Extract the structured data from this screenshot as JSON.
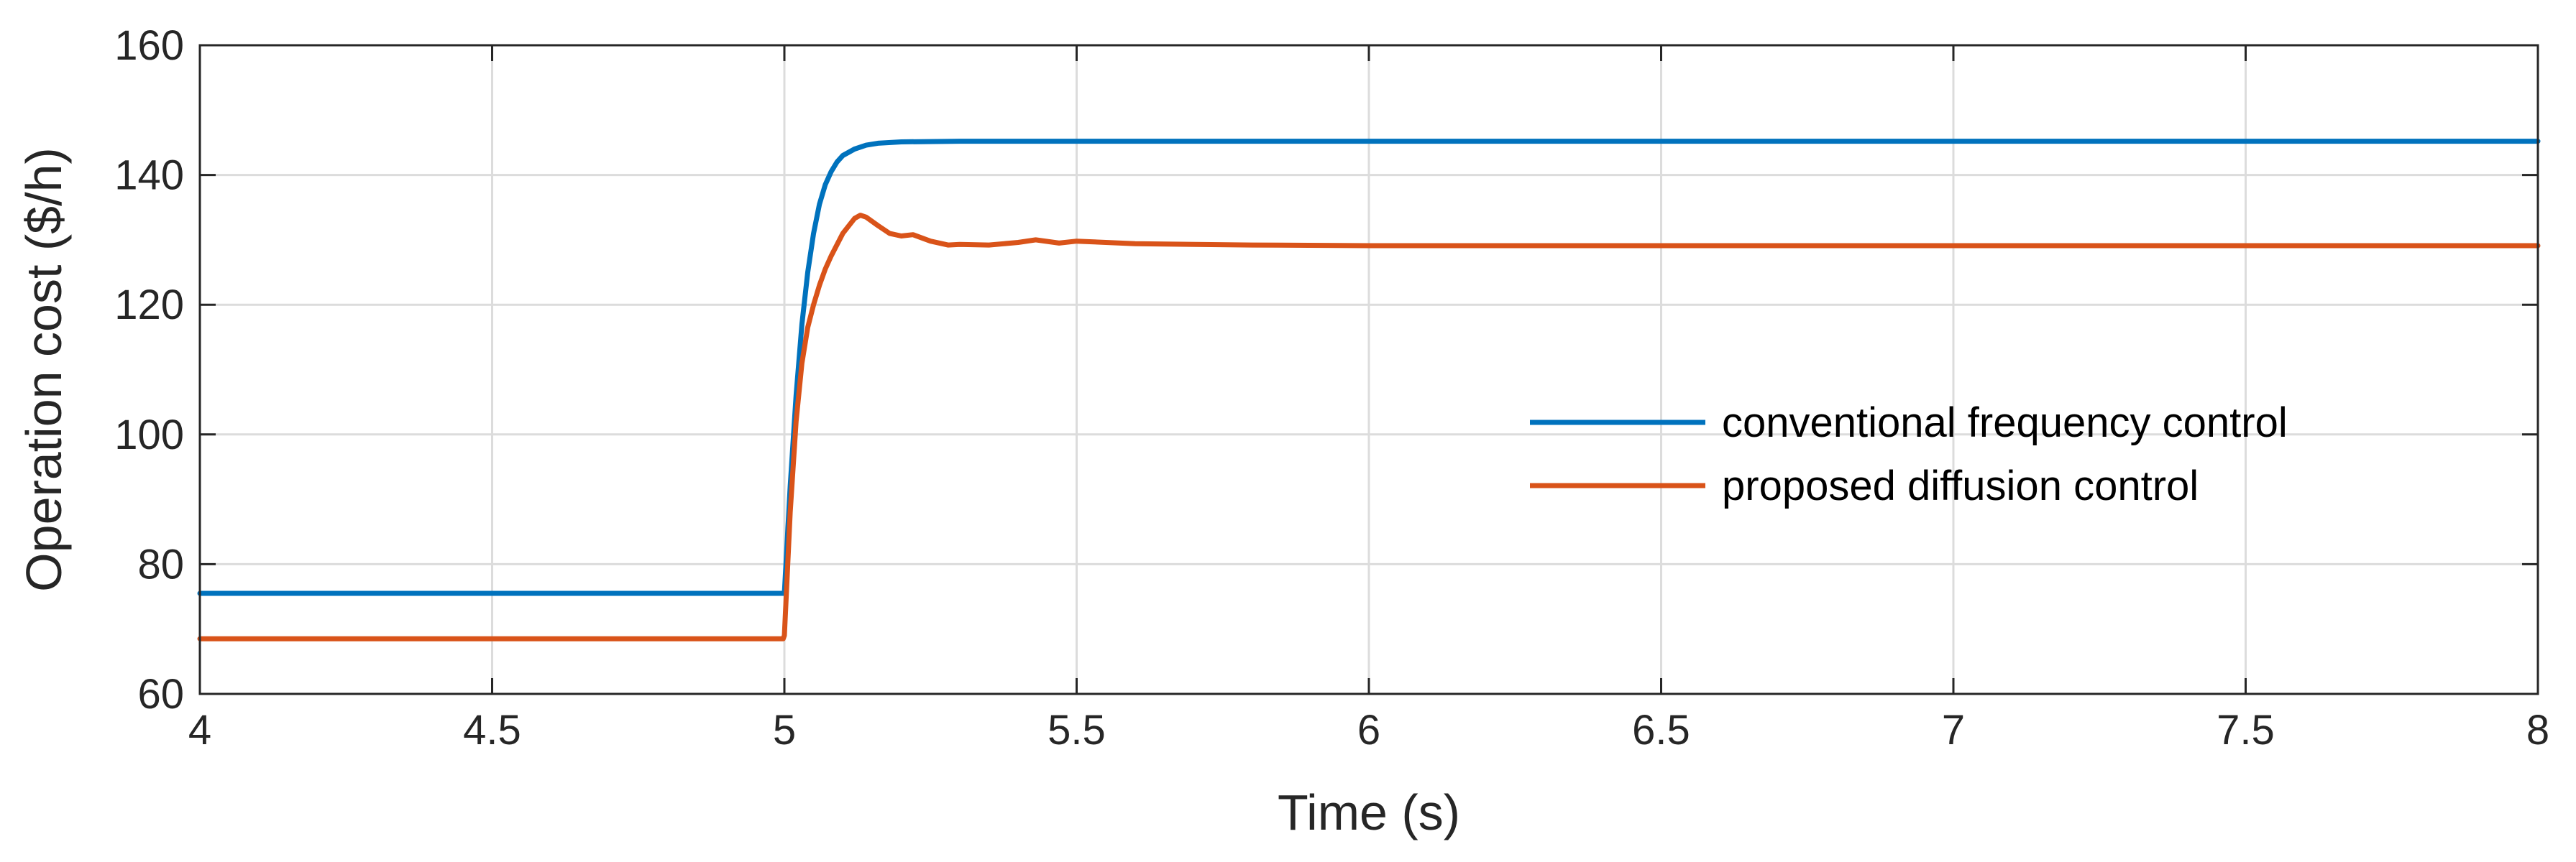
{
  "chart_data": {
    "type": "line",
    "title": "",
    "xlabel": "Time (s)",
    "ylabel": "Operation cost ($/h)",
    "xlim": [
      4,
      8
    ],
    "ylim": [
      60,
      160
    ],
    "xticks": [
      4,
      4.5,
      5,
      5.5,
      6,
      6.5,
      7,
      7.5,
      8
    ],
    "xtick_labels": [
      "4",
      "4.5",
      "5",
      "5.5",
      "6",
      "6.5",
      "7",
      "7.5",
      "8"
    ],
    "yticks": [
      60,
      80,
      100,
      120,
      140,
      160
    ],
    "ytick_labels": [
      "60",
      "80",
      "100",
      "120",
      "140",
      "160"
    ],
    "grid": true,
    "legend_position": "center-right",
    "series": [
      {
        "name": "conventional frequency control",
        "color": "#0072BD",
        "x": [
          4,
          5.0,
          5.01,
          5.02,
          5.03,
          5.04,
          5.05,
          5.06,
          5.07,
          5.08,
          5.09,
          5.1,
          5.12,
          5.14,
          5.16,
          5.2,
          5.3,
          8
        ],
        "y": [
          75.5,
          75.5,
          92,
          106,
          117,
          125,
          131,
          135.5,
          138.5,
          140.5,
          142,
          143,
          144,
          144.6,
          144.9,
          145.1,
          145.2,
          145.2
        ]
      },
      {
        "name": "proposed diffusion control",
        "color": "#D95319",
        "x": [
          4,
          4.998,
          5.0,
          5.01,
          5.02,
          5.03,
          5.04,
          5.05,
          5.06,
          5.07,
          5.08,
          5.1,
          5.12,
          5.13,
          5.14,
          5.16,
          5.18,
          5.2,
          5.22,
          5.25,
          5.28,
          5.3,
          5.35,
          5.4,
          5.43,
          5.47,
          5.5,
          5.55,
          5.6,
          5.8,
          6.0,
          8
        ],
        "y": [
          68.5,
          68.5,
          69,
          88,
          102,
          111,
          116.5,
          120,
          123,
          125.5,
          127.5,
          131,
          133.3,
          133.8,
          133.5,
          132.2,
          131,
          130.6,
          130.8,
          129.8,
          129.2,
          129.3,
          129.2,
          129.6,
          130.0,
          129.5,
          129.8,
          129.6,
          129.4,
          129.2,
          129.1,
          129.1
        ]
      }
    ]
  }
}
